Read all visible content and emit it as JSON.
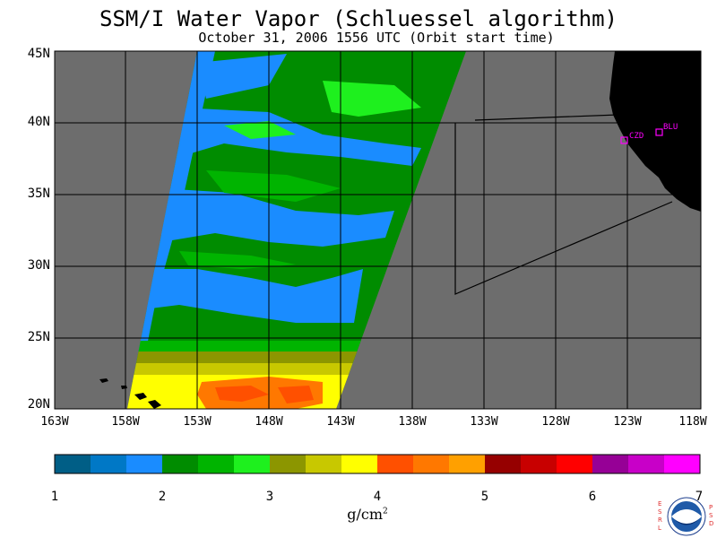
{
  "title": "SSM/I Water Vapor (Schluessel algorithm)",
  "subtitle": "October 31, 2006  1556 UTC  (Orbit start time)",
  "map": {
    "lon_range": [
      -163,
      -118
    ],
    "lat_range": [
      20,
      45
    ],
    "lat_labels": [
      "45N",
      "40N",
      "35N",
      "30N",
      "25N",
      "20N"
    ],
    "lon_labels": [
      "163W",
      "158W",
      "153W",
      "148W",
      "143W",
      "138W",
      "133W",
      "128W",
      "123W",
      "118W"
    ],
    "background_color": "#6d6d6d",
    "land_color": "#000000",
    "station_color": "#ff00ff",
    "stations": [
      {
        "label": "CZD",
        "lon": -123.4,
        "lat": 38.6
      },
      {
        "label": "BLU",
        "lon": -121.0,
        "lat": 39.3
      }
    ]
  },
  "colorbar": {
    "tick_labels": [
      "1",
      "2",
      "3",
      "4",
      "5",
      "6",
      "7"
    ],
    "units_base": "g/cm",
    "units_exp": "2",
    "colors": [
      "#005e86",
      "#0078c6",
      "#1a8cff",
      "#008c00",
      "#00b400",
      "#1ef01e",
      "#8c9600",
      "#c8c800",
      "#ffff00",
      "#ff5000",
      "#ff7800",
      "#ffa000",
      "#960000",
      "#c80000",
      "#ff0000",
      "#960096",
      "#c800c8",
      "#ff00ff"
    ]
  },
  "logo": {
    "left_letters": "ESRL",
    "right_letters": "PSD",
    "center_text": "NOAA"
  }
}
